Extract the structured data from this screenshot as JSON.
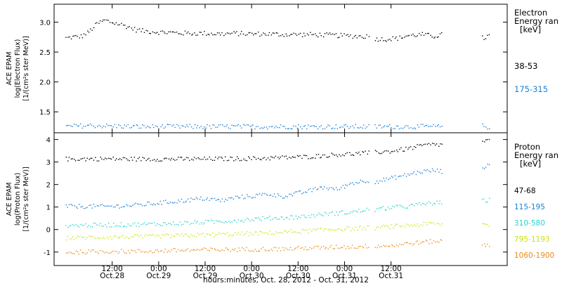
{
  "chart_data": [
    {
      "type": "scatter",
      "panel": "electron",
      "ylabel_lines": [
        "ACE EPAM",
        "log(Electron Flux)",
        "[1/(cm²s ster MeV)]"
      ],
      "ylim": [
        1.15,
        3.3
      ],
      "yticks": [
        1.5,
        2.0,
        2.5,
        3.0
      ],
      "ytick_labels": [
        "1.5",
        "2.0",
        "2.5",
        "3.0"
      ],
      "legend_title_lines": [
        "Electron",
        "Energy ran",
        "[keV]"
      ],
      "series": [
        {
          "name": "38-53",
          "color": "#000000",
          "points": [
            [
              0,
              2.74
            ],
            [
              2,
              2.76
            ],
            [
              4,
              2.77
            ],
            [
              6,
              2.85
            ],
            [
              8,
              2.98
            ],
            [
              10,
              3.04
            ],
            [
              12,
              3.0
            ],
            [
              14,
              2.97
            ],
            [
              16,
              2.93
            ],
            [
              18,
              2.88
            ],
            [
              20,
              2.86
            ],
            [
              24,
              2.84
            ],
            [
              28,
              2.83
            ],
            [
              32,
              2.82
            ],
            [
              36,
              2.82
            ],
            [
              40,
              2.81
            ],
            [
              44,
              2.82
            ],
            [
              48,
              2.81
            ],
            [
              52,
              2.81
            ],
            [
              56,
              2.8
            ],
            [
              60,
              2.8
            ],
            [
              64,
              2.8
            ],
            [
              68,
              2.79
            ],
            [
              72,
              2.78
            ],
            [
              76,
              2.77
            ],
            [
              78,
              2.77
            ],
            [
              80,
              2.73
            ],
            [
              82,
              2.72
            ],
            [
              84,
              2.73
            ],
            [
              86,
              2.74
            ],
            [
              88,
              2.78
            ],
            [
              90,
              2.79
            ],
            [
              92,
              2.8
            ],
            [
              95,
              2.77
            ],
            [
              97,
              2.8
            ],
            [
              108,
              2.74
            ],
            [
              109,
              2.78
            ]
          ]
        },
        {
          "name": "175-315",
          "color": "#1a7fd6",
          "points": [
            [
              0,
              1.26
            ],
            [
              6,
              1.28
            ],
            [
              12,
              1.27
            ],
            [
              18,
              1.26
            ],
            [
              24,
              1.26
            ],
            [
              30,
              1.26
            ],
            [
              36,
              1.26
            ],
            [
              42,
              1.26
            ],
            [
              48,
              1.26
            ],
            [
              54,
              1.26
            ],
            [
              60,
              1.26
            ],
            [
              66,
              1.26
            ],
            [
              72,
              1.26
            ],
            [
              76,
              1.26
            ],
            [
              80,
              1.26
            ],
            [
              86,
              1.26
            ],
            [
              92,
              1.26
            ],
            [
              97,
              1.26
            ],
            [
              108,
              1.27
            ],
            [
              109,
              1.25
            ]
          ]
        }
      ]
    },
    {
      "type": "scatter",
      "panel": "proton",
      "ylabel_lines": [
        "ACE EPAM",
        "log(Proton Flux)",
        "[1/(cm²s ster MeV)]"
      ],
      "ylim": [
        -1.6,
        4.3
      ],
      "yticks": [
        -1,
        0,
        1,
        2,
        3,
        4
      ],
      "ytick_labels": [
        "-1",
        "0",
        "1",
        "2",
        "3",
        "4"
      ],
      "legend_title_lines": [
        "Proton",
        "Energy ran",
        "[keV]"
      ],
      "series": [
        {
          "name": "47-68",
          "color": "#000000",
          "points": [
            [
              0,
              3.15
            ],
            [
              10,
              3.16
            ],
            [
              20,
              3.15
            ],
            [
              30,
              3.15
            ],
            [
              40,
              3.16
            ],
            [
              50,
              3.18
            ],
            [
              56,
              3.22
            ],
            [
              62,
              3.25
            ],
            [
              66,
              3.3
            ],
            [
              70,
              3.35
            ],
            [
              74,
              3.38
            ],
            [
              78,
              3.42
            ],
            [
              80,
              3.45
            ],
            [
              84,
              3.5
            ],
            [
              88,
              3.6
            ],
            [
              92,
              3.75
            ],
            [
              95,
              3.8
            ],
            [
              97,
              3.78
            ],
            [
              108,
              3.95
            ],
            [
              109,
              3.97
            ]
          ]
        },
        {
          "name": "115-195",
          "color": "#1a7fd6",
          "points": [
            [
              0,
              1.05
            ],
            [
              6,
              1.05
            ],
            [
              12,
              1.05
            ],
            [
              18,
              1.1
            ],
            [
              24,
              1.2
            ],
            [
              30,
              1.3
            ],
            [
              36,
              1.4
            ],
            [
              40,
              1.3
            ],
            [
              44,
              1.45
            ],
            [
              48,
              1.5
            ],
            [
              52,
              1.6
            ],
            [
              56,
              1.5
            ],
            [
              62,
              1.7
            ],
            [
              66,
              1.9
            ],
            [
              70,
              1.8
            ],
            [
              74,
              2.1
            ],
            [
              78,
              2.2
            ],
            [
              80,
              2.15
            ],
            [
              84,
              2.3
            ],
            [
              88,
              2.45
            ],
            [
              92,
              2.6
            ],
            [
              95,
              2.65
            ],
            [
              97,
              2.6
            ],
            [
              108,
              2.8
            ],
            [
              109,
              2.85
            ]
          ]
        },
        {
          "name": "310-580",
          "color": "#22d6c8",
          "points": [
            [
              0,
              0.2
            ],
            [
              10,
              0.22
            ],
            [
              20,
              0.25
            ],
            [
              30,
              0.3
            ],
            [
              40,
              0.38
            ],
            [
              50,
              0.5
            ],
            [
              56,
              0.55
            ],
            [
              62,
              0.6
            ],
            [
              66,
              0.7
            ],
            [
              70,
              0.75
            ],
            [
              74,
              0.8
            ],
            [
              78,
              0.9
            ],
            [
              80,
              0.9
            ],
            [
              84,
              1.0
            ],
            [
              88,
              1.05
            ],
            [
              92,
              1.15
            ],
            [
              95,
              1.2
            ],
            [
              97,
              1.2
            ],
            [
              108,
              1.3
            ],
            [
              109,
              1.32
            ]
          ]
        },
        {
          "name": "795-1193",
          "color": "#c8e60a",
          "points": [
            [
              0,
              -0.35
            ],
            [
              10,
              -0.32
            ],
            [
              20,
              -0.3
            ],
            [
              30,
              -0.25
            ],
            [
              40,
              -0.2
            ],
            [
              50,
              -0.15
            ],
            [
              56,
              -0.1
            ],
            [
              62,
              -0.05
            ],
            [
              66,
              0.0
            ],
            [
              70,
              0.05
            ],
            [
              74,
              0.05
            ],
            [
              78,
              0.1
            ],
            [
              80,
              0.1
            ],
            [
              84,
              0.15
            ],
            [
              88,
              0.2
            ],
            [
              92,
              0.25
            ],
            [
              95,
              0.28
            ],
            [
              97,
              0.25
            ],
            [
              108,
              0.25
            ],
            [
              109,
              0.22
            ]
          ]
        },
        {
          "name": "1060-1900",
          "color": "#ee8a14",
          "points": [
            [
              0,
              -1.0
            ],
            [
              10,
              -0.95
            ],
            [
              20,
              -0.95
            ],
            [
              30,
              -0.9
            ],
            [
              40,
              -0.88
            ],
            [
              50,
              -0.85
            ],
            [
              56,
              -0.85
            ],
            [
              62,
              -0.8
            ],
            [
              66,
              -0.8
            ],
            [
              70,
              -0.75
            ],
            [
              74,
              -0.75
            ],
            [
              78,
              -0.72
            ],
            [
              80,
              -0.7
            ],
            [
              84,
              -0.7
            ],
            [
              88,
              -0.6
            ],
            [
              92,
              -0.55
            ],
            [
              95,
              -0.5
            ],
            [
              97,
              -0.5
            ],
            [
              108,
              -0.65
            ],
            [
              109,
              -0.7
            ]
          ]
        }
      ]
    }
  ],
  "x_axis": {
    "domain_hours": [
      -3,
      114
    ],
    "gaps_hours": [
      [
        78.5,
        79.5
      ],
      [
        97.3,
        107.5
      ]
    ],
    "ticks": [
      {
        "hours": 12,
        "time": "12:00",
        "date": "Oct.28"
      },
      {
        "hours": 24,
        "time": "0:00",
        "date": "Oct.29"
      },
      {
        "hours": 36,
        "time": "12:00",
        "date": "Oct.29"
      },
      {
        "hours": 48,
        "time": "0:00",
        "date": "Oct.30"
      },
      {
        "hours": 60,
        "time": "12:00",
        "date": "Oct.30"
      },
      {
        "hours": 72,
        "time": "0:00",
        "date": "Oct.31"
      },
      {
        "hours": 84,
        "time": "12:00",
        "date": "Oct.31"
      }
    ],
    "xlabel": "hours:minutes, Oct. 28, 2012 - Oct. 31, 2012"
  }
}
